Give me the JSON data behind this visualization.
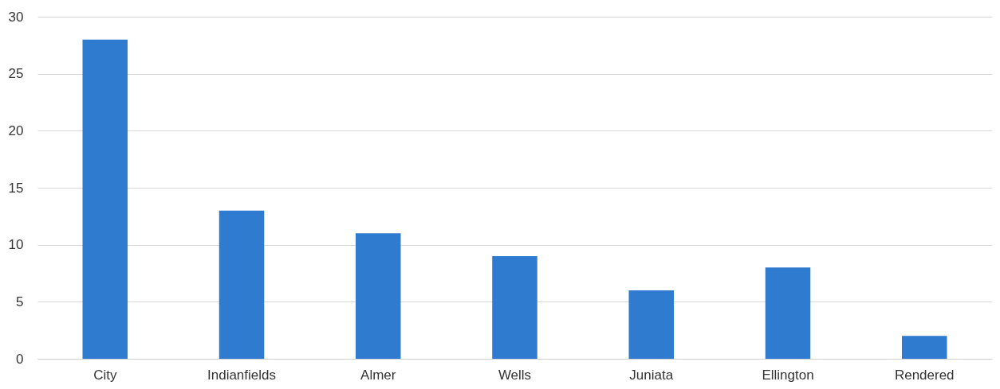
{
  "chart_data": {
    "type": "bar",
    "categories": [
      "City",
      "Indianfields",
      "Almer",
      "Wells",
      "Juniata",
      "Ellington",
      "Rendered"
    ],
    "values": [
      28,
      13,
      11,
      9,
      6,
      8,
      2
    ],
    "color": "#2e7bcf",
    "ylim": [
      0,
      30
    ],
    "yticks": [
      0,
      5,
      10,
      15,
      20,
      25,
      30
    ],
    "grid": "y"
  }
}
